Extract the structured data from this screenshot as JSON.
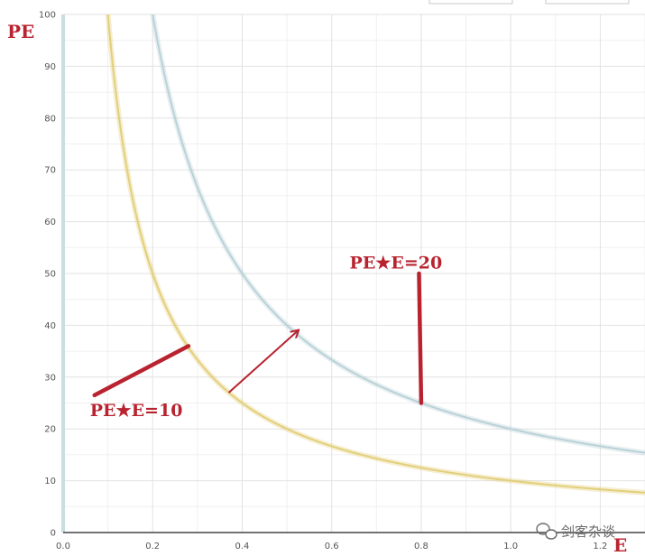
{
  "chart_data": {
    "type": "line",
    "xlabel": "E",
    "ylabel": "PE",
    "xlim": [
      0,
      1.3
    ],
    "ylim": [
      0,
      100
    ],
    "x_ticks": [
      0.0,
      0.2,
      0.4,
      0.6,
      0.8,
      1.0,
      1.2
    ],
    "x_tick_labels": [
      "0.0",
      "0.2",
      "0.4",
      "0.6",
      "0.8",
      "1.0",
      "1.2"
    ],
    "y_ticks": [
      0,
      10,
      20,
      30,
      40,
      50,
      60,
      70,
      80,
      90,
      100
    ],
    "y_tick_labels": [
      "0",
      "10",
      "20",
      "30",
      "40",
      "50",
      "60",
      "70",
      "80",
      "90",
      "100"
    ],
    "grid": true,
    "series": [
      {
        "name": "PE★E=10",
        "color": "#e3cf7a",
        "x": [
          0.1,
          0.12,
          0.15,
          0.2,
          0.25,
          0.3,
          0.35,
          0.4,
          0.5,
          0.6,
          0.7,
          0.8,
          0.9,
          1.0,
          1.1,
          1.2,
          1.3
        ],
        "y": [
          100,
          83.3,
          66.7,
          50,
          40,
          33.3,
          28.6,
          25,
          20,
          16.7,
          14.3,
          12.5,
          11.1,
          10,
          9.1,
          8.3,
          7.7
        ]
      },
      {
        "name": "PE★E=20",
        "color": "#b9d2d8",
        "x": [
          0.2,
          0.25,
          0.3,
          0.35,
          0.4,
          0.45,
          0.5,
          0.6,
          0.7,
          0.8,
          0.9,
          1.0,
          1.1,
          1.2,
          1.3
        ],
        "y": [
          100,
          80,
          66.7,
          57.1,
          50,
          44.4,
          40,
          33.3,
          28.6,
          25,
          22.2,
          20,
          18.2,
          16.7,
          15.4
        ]
      }
    ],
    "annotations": [
      {
        "text": "PE★E=10",
        "label_at": [
          0.06,
          22.5
        ],
        "arrow_from": [
          0.07,
          26.5
        ],
        "arrow_to": [
          0.28,
          36
        ]
      },
      {
        "text": "PE★E=20",
        "label_at": [
          0.64,
          51
        ],
        "line_from": [
          0.795,
          50
        ],
        "line_to": [
          0.8,
          25
        ]
      },
      {
        "text": "",
        "arrow_from": [
          0.37,
          27
        ],
        "arrow_to": [
          0.525,
          39
        ]
      }
    ]
  },
  "watermark": {
    "icon": "wechat-icon",
    "text": "剑客杂谈"
  },
  "colors": {
    "annotation": "#b8232f",
    "grid": "#e2e2e2",
    "axis": "#555555"
  }
}
